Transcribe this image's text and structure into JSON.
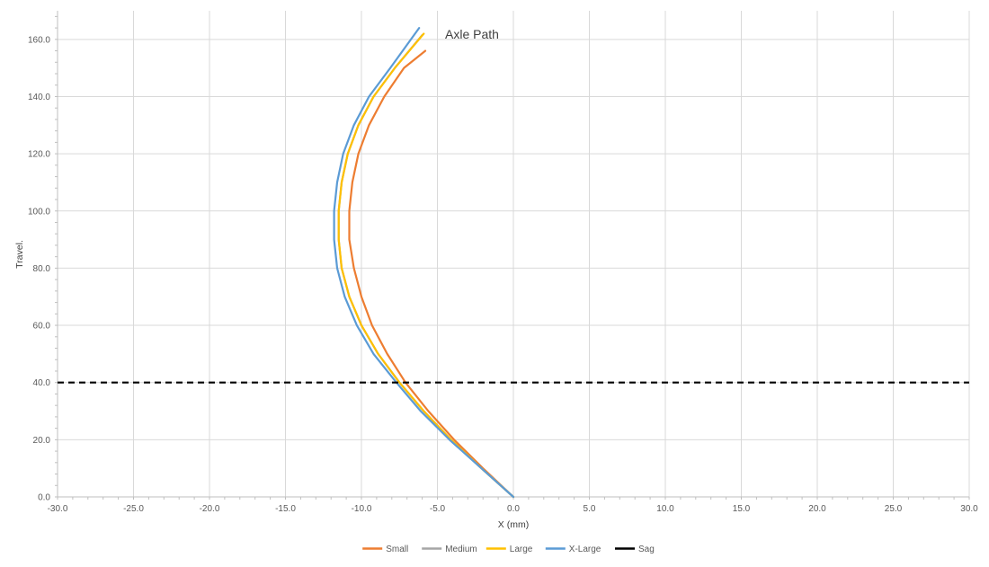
{
  "chart_data": {
    "type": "line",
    "title": "Axle Path",
    "xlabel": "X (mm)",
    "ylabel": "Travel.",
    "xlim": [
      -30,
      30
    ],
    "ylim": [
      0,
      170
    ],
    "xticks": [
      "-30.0",
      "-25.0",
      "-20.0",
      "-15.0",
      "-10.0",
      "-5.0",
      "0.0",
      "5.0",
      "10.0",
      "15.0",
      "20.0",
      "25.0",
      "30.0"
    ],
    "yticks": [
      "0.0",
      "20.0",
      "40.0",
      "60.0",
      "80.0",
      "100.0",
      "120.0",
      "140.0",
      "160.0"
    ],
    "grid": true,
    "legend_position": "bottom",
    "series": [
      {
        "name": "Small",
        "color": "#ED7D31",
        "points": [
          [
            0,
            0
          ],
          [
            -2,
            10
          ],
          [
            -3.9,
            20
          ],
          [
            -5.6,
            30
          ],
          [
            -7.1,
            40
          ],
          [
            -8.3,
            50
          ],
          [
            -9.3,
            60
          ],
          [
            -10.0,
            70
          ],
          [
            -10.5,
            80
          ],
          [
            -10.8,
            90
          ],
          [
            -10.8,
            100
          ],
          [
            -10.6,
            110
          ],
          [
            -10.2,
            120
          ],
          [
            -9.5,
            130
          ],
          [
            -8.5,
            140
          ],
          [
            -7.2,
            150
          ],
          [
            -5.8,
            156
          ]
        ]
      },
      {
        "name": "Medium",
        "color": "#A5A5A5",
        "points": [
          [
            0,
            0
          ],
          [
            -2.1,
            10
          ],
          [
            -4.1,
            20
          ],
          [
            -5.9,
            30
          ],
          [
            -7.5,
            40
          ],
          [
            -8.9,
            50
          ],
          [
            -10.0,
            60
          ],
          [
            -10.8,
            70
          ],
          [
            -11.3,
            80
          ],
          [
            -11.5,
            90
          ],
          [
            -11.5,
            100
          ],
          [
            -11.3,
            110
          ],
          [
            -10.9,
            120
          ],
          [
            -10.2,
            130
          ],
          [
            -9.2,
            140
          ],
          [
            -7.8,
            150
          ],
          [
            -6.0,
            161.5
          ]
        ]
      },
      {
        "name": "Large",
        "color": "#FFC000",
        "points": [
          [
            0,
            0
          ],
          [
            -2.1,
            10
          ],
          [
            -4.1,
            20
          ],
          [
            -5.9,
            30
          ],
          [
            -7.5,
            40
          ],
          [
            -8.9,
            50
          ],
          [
            -10.0,
            60
          ],
          [
            -10.8,
            70
          ],
          [
            -11.3,
            80
          ],
          [
            -11.5,
            90
          ],
          [
            -11.5,
            100
          ],
          [
            -11.3,
            110
          ],
          [
            -10.9,
            120
          ],
          [
            -10.2,
            130
          ],
          [
            -9.2,
            140
          ],
          [
            -7.8,
            150
          ],
          [
            -5.9,
            162
          ]
        ]
      },
      {
        "name": "X-Large",
        "color": "#5B9BD5",
        "points": [
          [
            0,
            0
          ],
          [
            -2.1,
            10
          ],
          [
            -4.2,
            20
          ],
          [
            -6.1,
            30
          ],
          [
            -7.7,
            40
          ],
          [
            -9.2,
            50
          ],
          [
            -10.3,
            60
          ],
          [
            -11.1,
            70
          ],
          [
            -11.6,
            80
          ],
          [
            -11.8,
            90
          ],
          [
            -11.8,
            100
          ],
          [
            -11.6,
            110
          ],
          [
            -11.2,
            120
          ],
          [
            -10.5,
            130
          ],
          [
            -9.5,
            140
          ],
          [
            -8.1,
            150
          ],
          [
            -6.2,
            164
          ]
        ]
      },
      {
        "name": "Sag",
        "color": "#000000",
        "dashed": true,
        "points": [
          [
            -30,
            40
          ],
          [
            30,
            40
          ]
        ]
      }
    ]
  }
}
